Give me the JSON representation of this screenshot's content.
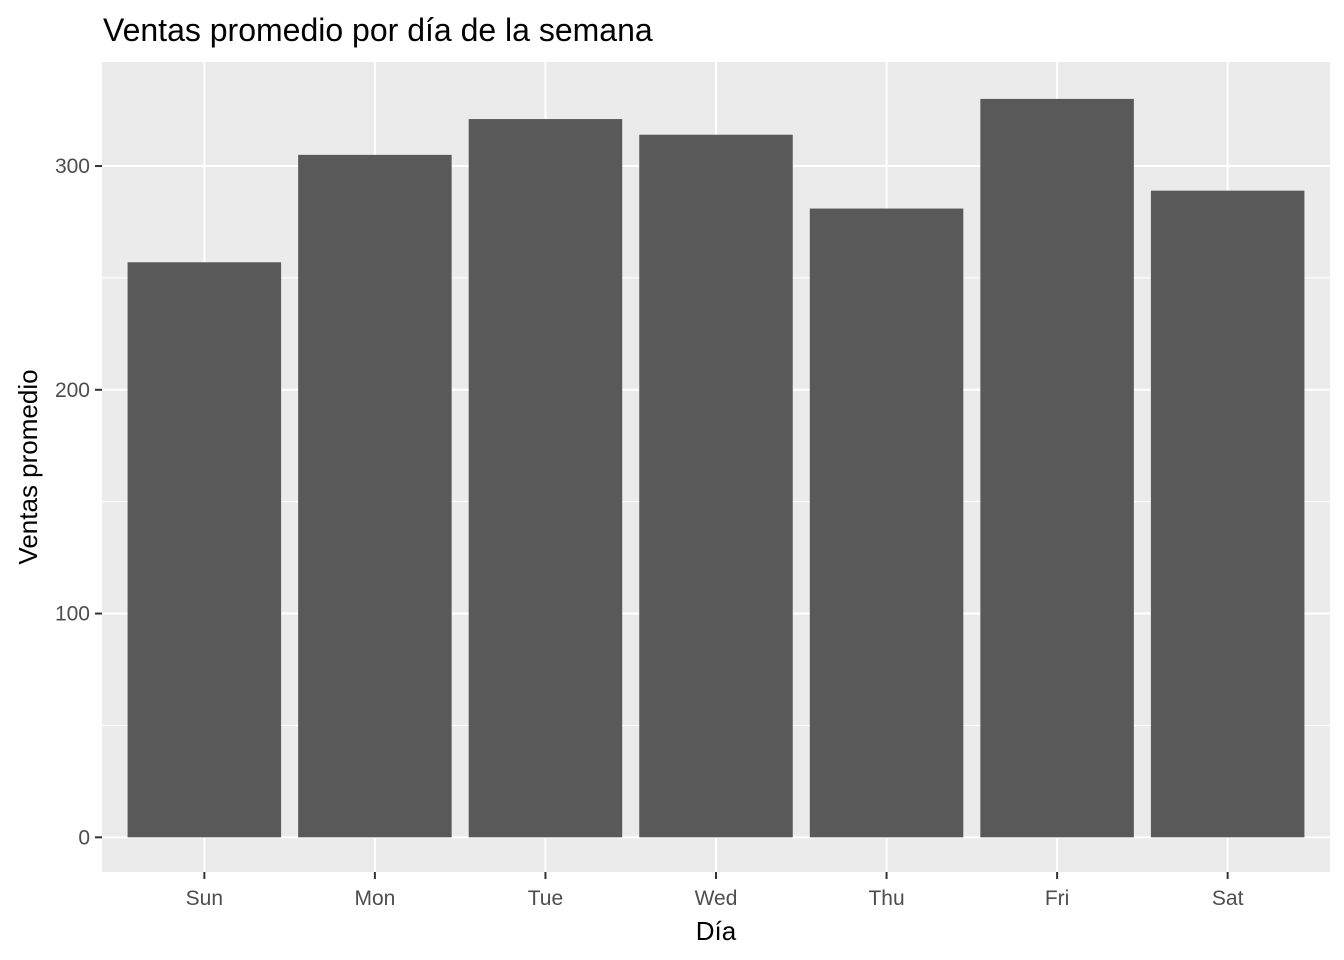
{
  "chart_data": {
    "type": "bar",
    "title": "Ventas promedio por día de la semana",
    "xlabel": "Día",
    "ylabel": "Ventas promedio",
    "categories": [
      "Sun",
      "Mon",
      "Tue",
      "Wed",
      "Thu",
      "Fri",
      "Sat"
    ],
    "values": [
      257,
      305,
      321,
      314,
      281,
      330,
      289
    ],
    "ylim": [
      -15.5,
      346.5
    ],
    "yticks": [
      0,
      100,
      200,
      300
    ],
    "yticks_minor": [
      50,
      150,
      250
    ],
    "grid": true,
    "legend": "none",
    "colors": {
      "bar": "#595959",
      "panel": "#ebebeb",
      "grid": "#ffffff",
      "tick_text": "#4d4d4d",
      "tick_mark": "#333333"
    }
  }
}
